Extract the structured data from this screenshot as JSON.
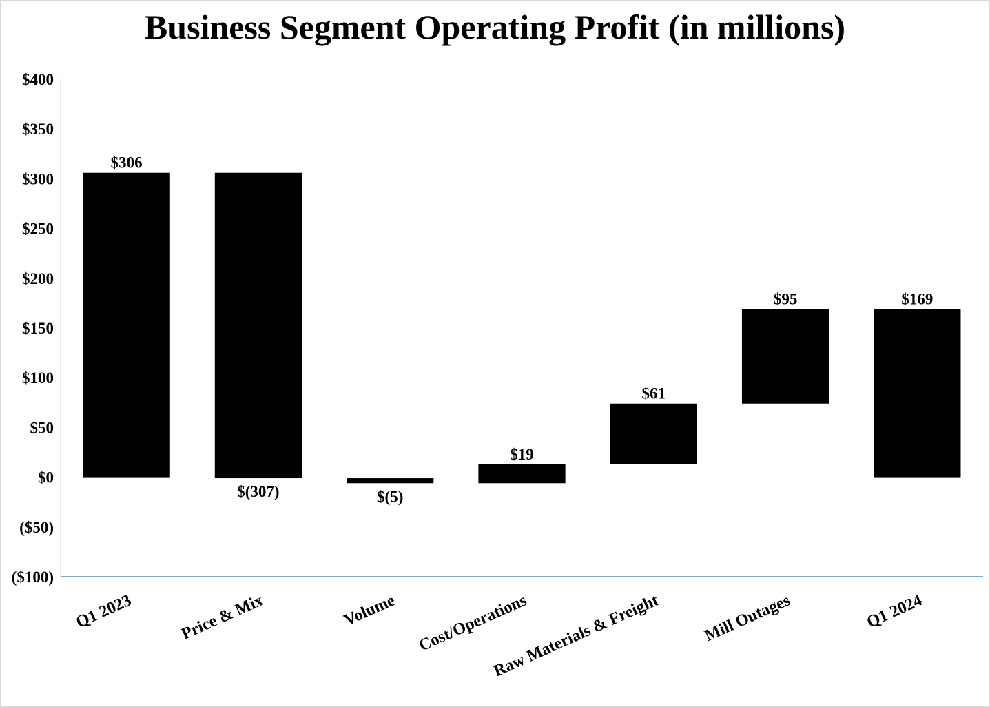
{
  "chart_data": {
    "type": "bar",
    "subtype": "waterfall",
    "title": "Business Segment Operating Profit (in millions)",
    "xlabel": "",
    "ylabel": "",
    "ylim": [
      -100,
      400
    ],
    "y_ticks": [
      400,
      350,
      300,
      250,
      200,
      150,
      100,
      50,
      0,
      -50,
      -100
    ],
    "y_tick_labels": [
      "$400",
      "$350",
      "$300",
      "$250",
      "$200",
      "$150",
      "$100",
      "$50",
      "$0",
      "($50)",
      "($100)"
    ],
    "categories": [
      "Q1 2023",
      "Price & Mix",
      "Volume",
      "Cost/Operations",
      "Raw Materials & Freight",
      "Mill Outages",
      "Q1 2024"
    ],
    "steps": [
      {
        "category": "Q1 2023",
        "kind": "total",
        "value": 306,
        "label": "$306"
      },
      {
        "category": "Price & Mix",
        "kind": "change",
        "value": -307,
        "label": "$(307)"
      },
      {
        "category": "Volume",
        "kind": "change",
        "value": -5,
        "label": "$(5)"
      },
      {
        "category": "Cost/Operations",
        "kind": "change",
        "value": 19,
        "label": "$19"
      },
      {
        "category": "Raw Materials & Freight",
        "kind": "change",
        "value": 61,
        "label": "$61"
      },
      {
        "category": "Mill Outages",
        "kind": "change",
        "value": 95,
        "label": "$95"
      },
      {
        "category": "Q1 2024",
        "kind": "total",
        "value": 169,
        "label": "$169"
      }
    ],
    "grid": false,
    "legend": "none",
    "colors": {
      "bar": "#000000",
      "axis": "#5b8bb0",
      "text": "#000000"
    }
  }
}
